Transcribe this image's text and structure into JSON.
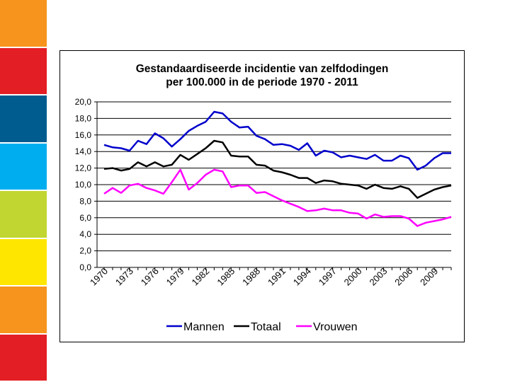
{
  "slide": {
    "strip_colors": [
      "#F7941D",
      "#E31E24",
      "#005B8E",
      "#00AEEF",
      "#C1D631",
      "#FFE600",
      "#F7941D",
      "#E31E24"
    ]
  },
  "chart_data": {
    "type": "line",
    "title_line1": "Gestandaardiseerde incidentie van zelfdodingen",
    "title_line2": "per 100.000 in de periode 1970 - 2011",
    "xlabel": "",
    "ylabel": "",
    "ylim": [
      0,
      20
    ],
    "y_ticks": [
      "0,0",
      "2,0",
      "4,0",
      "6,0",
      "8,0",
      "10,0",
      "12,0",
      "14,0",
      "16,0",
      "18,0",
      "20,0"
    ],
    "x_tick_labels": [
      "1970",
      "1973",
      "1976",
      "1979",
      "1982",
      "1985",
      "1988",
      "1991",
      "1994",
      "1997",
      "2000",
      "2003",
      "2006",
      "2009"
    ],
    "grid": true,
    "legend_position": "bottom",
    "x": [
      1970,
      1971,
      1972,
      1973,
      1974,
      1975,
      1976,
      1977,
      1978,
      1979,
      1980,
      1981,
      1982,
      1983,
      1984,
      1985,
      1986,
      1987,
      1988,
      1989,
      1990,
      1991,
      1992,
      1993,
      1994,
      1995,
      1996,
      1997,
      1998,
      1999,
      2000,
      2001,
      2002,
      2003,
      2004,
      2005,
      2006,
      2007,
      2008,
      2009,
      2010,
      2011
    ],
    "series": [
      {
        "name": "Mannen",
        "color": "#0000CC",
        "values": [
          14.8,
          14.5,
          14.4,
          14.1,
          15.3,
          14.9,
          16.2,
          15.6,
          14.6,
          15.5,
          16.5,
          17.1,
          17.6,
          18.8,
          18.6,
          17.6,
          16.9,
          17.0,
          15.9,
          15.5,
          14.8,
          14.9,
          14.7,
          14.2,
          15.0,
          13.5,
          14.1,
          13.9,
          13.3,
          13.5,
          13.3,
          13.1,
          13.6,
          12.9,
          12.9,
          13.5,
          13.2,
          11.8,
          12.3,
          13.2,
          13.8,
          13.8
        ]
      },
      {
        "name": "Totaal",
        "color": "#000000",
        "values": [
          11.9,
          12.0,
          11.7,
          11.9,
          12.7,
          12.2,
          12.7,
          12.2,
          12.4,
          13.6,
          13.0,
          13.7,
          14.4,
          15.3,
          15.1,
          13.5,
          13.4,
          13.4,
          12.4,
          12.3,
          11.7,
          11.5,
          11.2,
          10.8,
          10.8,
          10.2,
          10.5,
          10.4,
          10.1,
          10.0,
          9.9,
          9.5,
          10.0,
          9.6,
          9.5,
          9.8,
          9.5,
          8.4,
          8.9,
          9.4,
          9.7,
          9.9
        ]
      },
      {
        "name": "Vrouwen",
        "color": "#FF00FF",
        "values": [
          8.9,
          9.6,
          9.0,
          9.9,
          10.1,
          9.6,
          9.3,
          8.9,
          10.3,
          11.8,
          9.4,
          10.2,
          11.2,
          11.8,
          11.6,
          9.7,
          9.9,
          9.9,
          9.0,
          9.1,
          8.6,
          8.1,
          7.7,
          7.3,
          6.8,
          6.9,
          7.1,
          6.9,
          6.9,
          6.6,
          6.5,
          5.9,
          6.4,
          6.1,
          6.2,
          6.2,
          5.9,
          5.0,
          5.4,
          5.6,
          5.8,
          6.1
        ]
      }
    ]
  }
}
